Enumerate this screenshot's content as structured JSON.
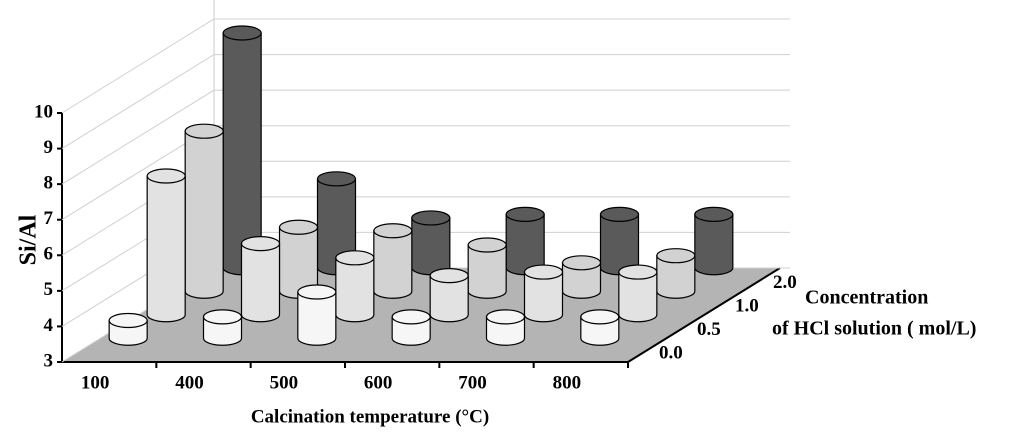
{
  "chart_data": {
    "type": "bar3d",
    "y_label": "Si/Al",
    "x_label": "Calcination temperature (°C)",
    "z_label_line1": "Concentration",
    "z_label_line2": "of HCl solution ( mol/L)",
    "categories": [
      "100",
      "400",
      "500",
      "600",
      "700",
      "800"
    ],
    "series": [
      {
        "name": "0.0",
        "color": "#f6f6f6",
        "values": [
          3.5,
          3.6,
          4.3,
          3.6,
          3.6,
          3.6
        ]
      },
      {
        "name": "0.5",
        "color": "#e2e2e2",
        "values": [
          6.9,
          5.0,
          4.6,
          4.1,
          4.2,
          4.2
        ]
      },
      {
        "name": "1.0",
        "color": "#d2d2d2",
        "values": [
          7.5,
          4.8,
          4.7,
          4.3,
          3.8,
          4.0
        ]
      },
      {
        "name": "2.0",
        "color": "#5a5a5a",
        "values": [
          9.6,
          5.5,
          4.4,
          4.5,
          4.5,
          4.5
        ]
      }
    ],
    "ylim": [
      3,
      10
    ],
    "yticks": [
      3,
      4,
      5,
      6,
      7,
      8,
      9,
      10
    ],
    "grid": true
  }
}
